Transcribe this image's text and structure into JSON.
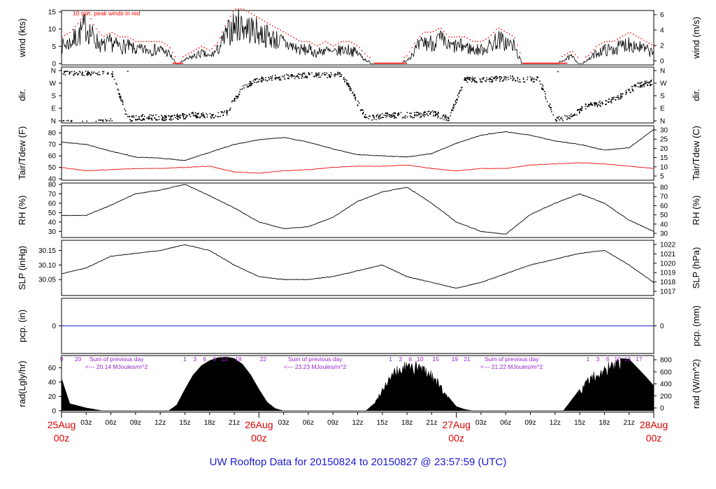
{
  "footer": "UW Rooftop Data for 20150824  to  20150827 @ 23:57:59  (UTC)",
  "colors": {
    "black": "#000000",
    "peak": "#ff0000",
    "tdew": "#ee1111",
    "pcp": "#2222cc",
    "annotation": "#9922cc",
    "date": "#dd0000",
    "footer": "#1a1ad0"
  },
  "x_axis": {
    "hour_labels": [
      "03z",
      "06z",
      "09z",
      "12z",
      "15z",
      "18z",
      "21z",
      "03z",
      "06z",
      "09z",
      "12z",
      "15z",
      "18z",
      "21z",
      "03z",
      "06z",
      "09z",
      "12z",
      "15z",
      "18z",
      "21z"
    ],
    "hour_values": [
      3,
      6,
      9,
      12,
      15,
      18,
      21,
      27,
      30,
      33,
      36,
      39,
      42,
      45,
      51,
      54,
      57,
      60,
      63,
      66,
      69
    ],
    "day_labels": [
      {
        "date": "25Aug",
        "time": "00z",
        "hour": 0
      },
      {
        "date": "26Aug",
        "time": "00z",
        "hour": 24
      },
      {
        "date": "27Aug",
        "time": "00z",
        "hour": 48
      },
      {
        "date": "28Aug",
        "time": "00z",
        "hour": 72
      }
    ],
    "range": [
      0,
      72
    ]
  },
  "chart_data": [
    {
      "type": "line",
      "ylabel": "wind (kts)",
      "ylabel_right": "wind (m/s)",
      "annotation": "10 min. peak winds in red",
      "ylim": [
        0,
        15
      ],
      "yticks": [
        0,
        5,
        10,
        15
      ],
      "yticks_right": [
        0,
        2,
        4,
        6
      ],
      "series": [
        {
          "x": [
            0,
            1,
            2,
            3,
            4,
            5,
            6,
            7,
            8,
            9,
            10,
            11,
            12,
            13,
            14,
            15,
            16,
            17,
            18,
            19,
            20,
            21,
            22,
            23,
            24,
            25,
            26,
            27,
            28,
            29,
            30,
            31,
            32,
            33,
            34,
            35,
            36,
            37,
            38,
            39,
            40,
            41,
            42,
            43,
            44,
            45,
            46,
            47,
            48,
            49,
            50,
            51,
            52,
            53,
            54,
            55,
            56,
            57,
            58,
            59,
            60,
            61,
            62,
            63,
            64,
            65,
            66,
            67,
            68,
            69,
            70,
            71,
            72
          ],
          "values": [
            5,
            6,
            8,
            11,
            7,
            5,
            6,
            5,
            5,
            4,
            4,
            4,
            4,
            3,
            0,
            1,
            2,
            3,
            2,
            4,
            8,
            11,
            11,
            10,
            9,
            8,
            7,
            6,
            5,
            4,
            4,
            3,
            4,
            3,
            4,
            4,
            3,
            1,
            0,
            0,
            0,
            0,
            1,
            4,
            6,
            6,
            7,
            5,
            5,
            5,
            4,
            4,
            5,
            7,
            6,
            5,
            0,
            0,
            0,
            0,
            0,
            1,
            2,
            0,
            1,
            3,
            4,
            4,
            5,
            6,
            5,
            4,
            3
          ]
        }
      ]
    },
    {
      "type": "scatter",
      "ylabel": "dir.",
      "ylabel_right": "dir.",
      "yticks": [
        "N",
        "E",
        "S",
        "W",
        "N"
      ],
      "yticks_right": [
        "N",
        "E",
        "S",
        "W",
        "N"
      ],
      "ylim": [
        0,
        360
      ]
    },
    {
      "type": "line",
      "ylabel": "Tair/Tdew (F)",
      "ylabel_right": "Tair/Tdew (C)",
      "ylim": [
        40,
        85
      ],
      "yticks": [
        40,
        50,
        60,
        70,
        80
      ],
      "yticks_right": [
        5,
        10,
        15,
        20,
        25,
        30
      ],
      "series": [
        {
          "x": [
            0,
            3,
            6,
            9,
            12,
            15,
            18,
            21,
            24,
            27,
            30,
            33,
            36,
            39,
            42,
            45,
            48,
            51,
            54,
            57,
            60,
            63,
            66,
            69,
            72
          ],
          "values": [
            72,
            70,
            64,
            59,
            58,
            56,
            63,
            70,
            74,
            76,
            72,
            66,
            61,
            60,
            59,
            62,
            71,
            78,
            81,
            78,
            73,
            70,
            65,
            67,
            83
          ]
        },
        {
          "x": [
            0,
            3,
            6,
            9,
            12,
            15,
            18,
            21,
            24,
            27,
            30,
            33,
            36,
            39,
            42,
            45,
            48,
            51,
            54,
            57,
            60,
            63,
            66,
            69,
            72
          ],
          "values": [
            50,
            47,
            48,
            49,
            49,
            50,
            51,
            46,
            45,
            47,
            48,
            50,
            51,
            51,
            52,
            49,
            47,
            49,
            49,
            52,
            53,
            54,
            53,
            51,
            49
          ]
        }
      ]
    },
    {
      "type": "line",
      "ylabel": "RH (%)",
      "ylabel_right": "RH (%)",
      "ylim": [
        25,
        80
      ],
      "yticks": [
        30,
        40,
        50,
        60,
        70,
        80
      ],
      "yticks_right": [
        30,
        40,
        50,
        60,
        70,
        80
      ],
      "series": [
        {
          "x": [
            0,
            3,
            6,
            9,
            12,
            15,
            18,
            21,
            24,
            27,
            30,
            33,
            36,
            39,
            42,
            45,
            48,
            51,
            54,
            57,
            60,
            63,
            66,
            69,
            72
          ],
          "values": [
            47,
            47,
            58,
            70,
            74,
            80,
            68,
            55,
            40,
            33,
            35,
            45,
            62,
            72,
            77,
            60,
            40,
            30,
            27,
            48,
            60,
            70,
            60,
            42,
            30
          ]
        }
      ]
    },
    {
      "type": "line",
      "ylabel": "SLP (inHg)",
      "ylabel_right": "SLP (hPa)",
      "ylim": [
        30.0,
        30.18
      ],
      "yticks": [
        30.05,
        30.1,
        30.15
      ],
      "yticks_right": [
        1017,
        1018,
        1019,
        1020,
        1021,
        1022
      ],
      "series": [
        {
          "x": [
            0,
            3,
            6,
            9,
            12,
            15,
            18,
            21,
            24,
            27,
            30,
            33,
            36,
            39,
            42,
            45,
            48,
            51,
            54,
            57,
            60,
            63,
            66,
            69,
            72
          ],
          "values": [
            30.07,
            30.09,
            30.13,
            30.14,
            30.15,
            30.17,
            30.15,
            30.1,
            30.06,
            30.05,
            30.05,
            30.06,
            30.08,
            30.1,
            30.06,
            30.04,
            30.02,
            30.04,
            30.07,
            30.1,
            30.12,
            30.14,
            30.15,
            30.1,
            30.04
          ]
        }
      ]
    },
    {
      "type": "line",
      "ylabel": "pcp. (in)",
      "ylabel_right": "pcp. (mm)",
      "yticks": [
        0
      ],
      "yticks_right": [
        0
      ],
      "series": [
        {
          "x": [
            0,
            72
          ],
          "values": [
            0,
            0
          ]
        }
      ]
    },
    {
      "type": "area",
      "ylabel": "rad(Lgly/hr)",
      "ylabel_right": "rad (W/m^2)",
      "ylim": [
        0,
        75
      ],
      "yticks": [
        0,
        20,
        40,
        60
      ],
      "yticks_right": [
        0,
        200,
        400,
        600,
        800
      ],
      "hour_marks": [
        {
          "label": "9",
          "hour": 0
        },
        {
          "label": "20",
          "hour": 2
        },
        {
          "label": "1",
          "hour": 15
        },
        {
          "label": "3",
          "hour": 16.2
        },
        {
          "label": "6",
          "hour": 17.4
        },
        {
          "label": "9",
          "hour": 18.6
        },
        {
          "label": "13",
          "hour": 19.8
        },
        {
          "label": "18",
          "hour": 21.5
        },
        {
          "label": "22",
          "hour": 24.5
        },
        {
          "label": "1",
          "hour": 40
        },
        {
          "label": "3",
          "hour": 41.2
        },
        {
          "label": "6",
          "hour": 42.4
        },
        {
          "label": "10",
          "hour": 43.6
        },
        {
          "label": "15",
          "hour": 45.5
        },
        {
          "label": "19",
          "hour": 47.8
        },
        {
          "label": "21",
          "hour": 49.3
        },
        {
          "label": "1",
          "hour": 64
        },
        {
          "label": "3",
          "hour": 65.2
        },
        {
          "label": "6",
          "hour": 66.4
        },
        {
          "label": "10",
          "hour": 67.6
        },
        {
          "label": "13",
          "hour": 68.8
        },
        {
          "label": "17",
          "hour": 70.2
        }
      ],
      "annotations": [
        {
          "line1": "Sum of previous day",
          "line2": "<--- 20.14 MJoules/m^2"
        },
        {
          "line1": "Sum of previous day",
          "line2": "<--- 23.23 MJoules/m^2"
        },
        {
          "line1": "Sum of previous day",
          "line2": "<--- 21.22 MJoules/m^2"
        }
      ],
      "series": [
        {
          "x": [
            0,
            1,
            2,
            3,
            4,
            5,
            13,
            14,
            15,
            16,
            17,
            18,
            19,
            20,
            21,
            22,
            23,
            24,
            25,
            26,
            27,
            37,
            38,
            39,
            40,
            41,
            42,
            43,
            44,
            45,
            46,
            47,
            48,
            49,
            50,
            51,
            61,
            62,
            63,
            64,
            65,
            66,
            67,
            68,
            69,
            70,
            71,
            72
          ],
          "values": [
            45,
            10,
            7,
            4,
            2,
            0,
            0,
            8,
            30,
            50,
            63,
            70,
            74,
            75,
            73,
            65,
            50,
            30,
            12,
            3,
            0,
            0,
            10,
            35,
            55,
            65,
            72,
            70,
            68,
            58,
            40,
            20,
            6,
            2,
            0,
            0,
            0,
            15,
            30,
            48,
            58,
            65,
            72,
            73,
            72,
            60,
            48,
            35
          ]
        }
      ]
    }
  ]
}
